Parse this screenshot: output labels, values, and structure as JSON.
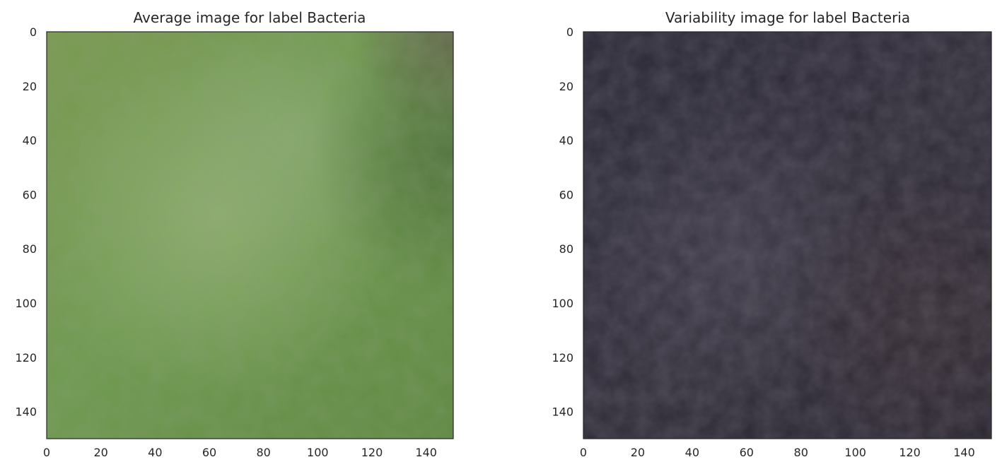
{
  "figure": {
    "panels": [
      {
        "title": "Average image for label Bacteria",
        "xticks": [
          "0",
          "20",
          "40",
          "60",
          "80",
          "100",
          "120",
          "140"
        ],
        "yticks": [
          "0",
          "20",
          "40",
          "60",
          "80",
          "100",
          "120",
          "140"
        ],
        "palette": {
          "base": "#6f9148",
          "light": "#93ad6c",
          "dark": "#4f6e36",
          "corner": "#5a5c40"
        }
      },
      {
        "title": "Variability image for label Bacteria",
        "xticks": [
          "0",
          "20",
          "40",
          "60",
          "80",
          "100",
          "120",
          "140"
        ],
        "yticks": [
          "0",
          "20",
          "40",
          "60",
          "80",
          "100",
          "120",
          "140"
        ],
        "palette": {
          "base": "#2c2a36",
          "light": "#3d3b48",
          "dark": "#201f28",
          "corner": "#342a30"
        }
      }
    ]
  },
  "chart_data": [
    {
      "type": "heatmap",
      "title": "Average image for label Bacteria",
      "xlim": [
        0,
        150
      ],
      "ylim": [
        150,
        0
      ],
      "xticks": [
        0,
        20,
        40,
        60,
        80,
        100,
        120,
        140
      ],
      "yticks": [
        0,
        20,
        40,
        60,
        80,
        100,
        120,
        140
      ],
      "grid": false,
      "xlabel": "",
      "ylabel": ""
    },
    {
      "type": "heatmap",
      "title": "Variability image for label Bacteria",
      "xlim": [
        0,
        150
      ],
      "ylim": [
        150,
        0
      ],
      "xticks": [
        0,
        20,
        40,
        60,
        80,
        100,
        120,
        140
      ],
      "yticks": [
        0,
        20,
        40,
        60,
        80,
        100,
        120,
        140
      ],
      "grid": false,
      "xlabel": "",
      "ylabel": ""
    }
  ]
}
